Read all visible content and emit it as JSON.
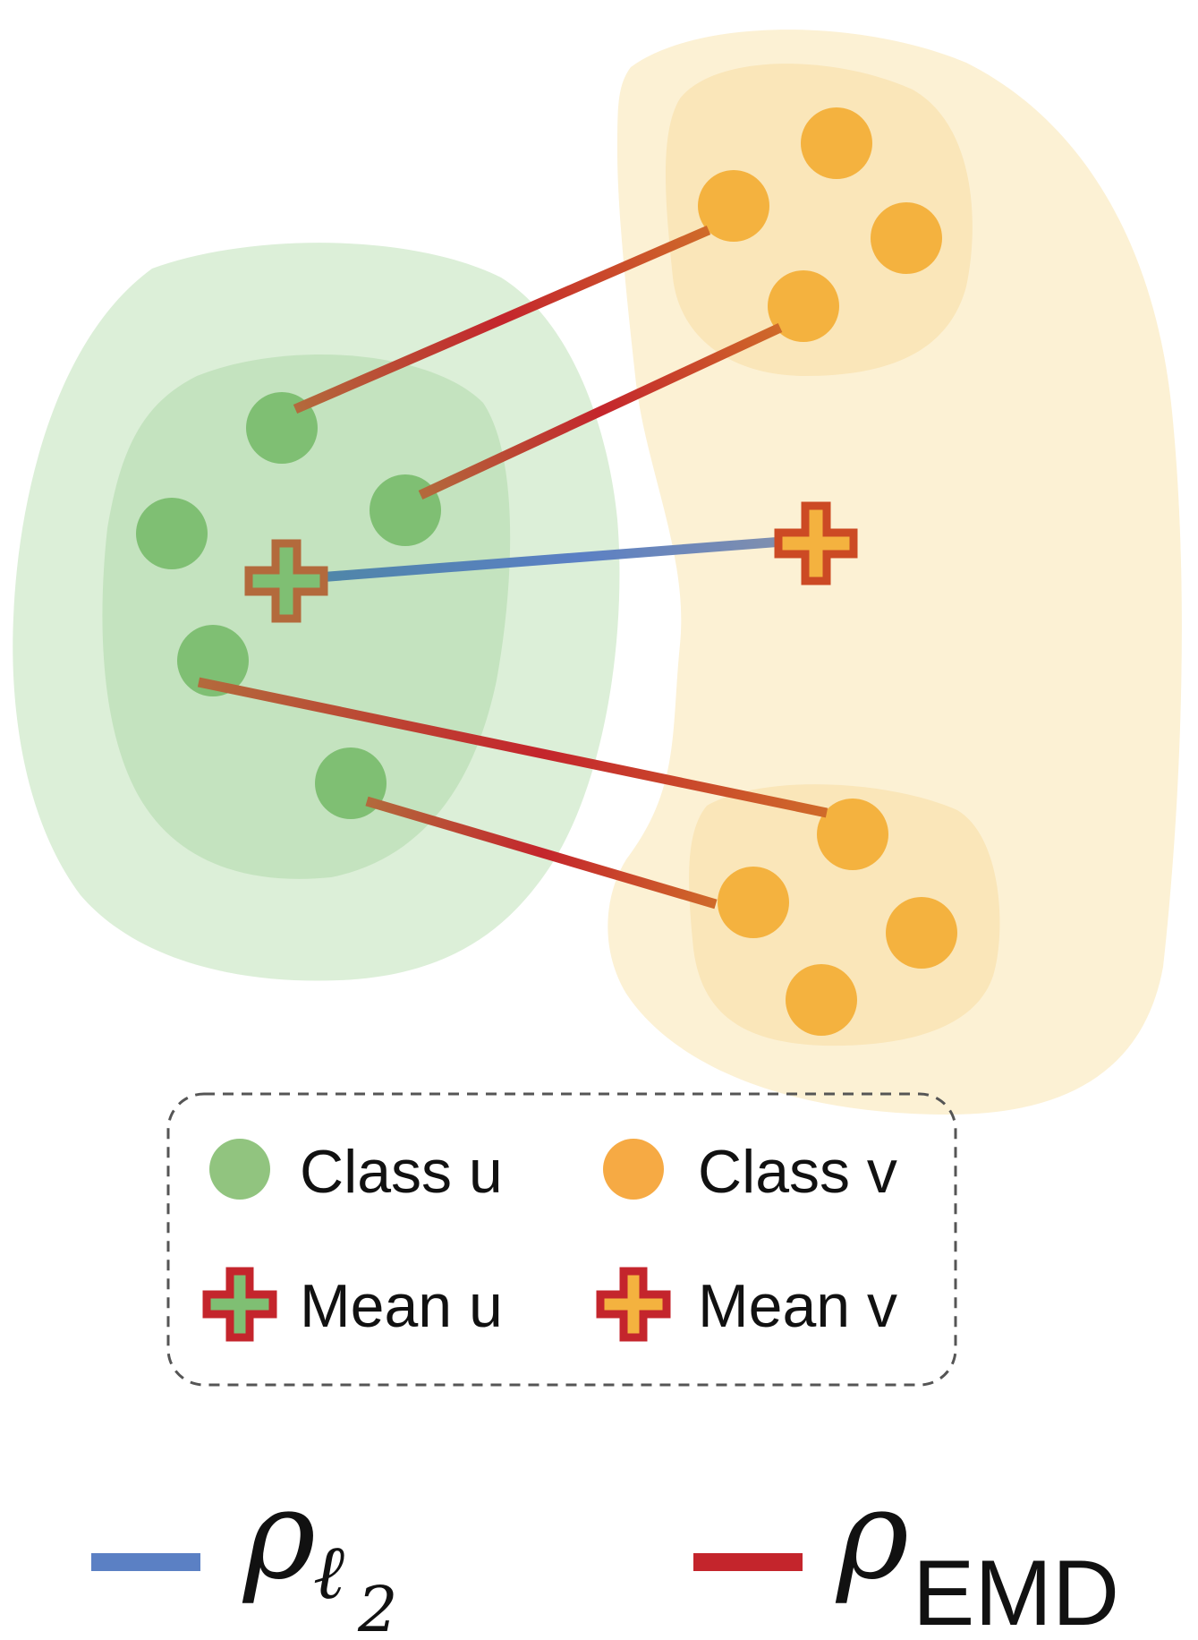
{
  "legend": {
    "class_u": "Class u",
    "class_v": "Class v",
    "mean_u": "Mean u",
    "mean_v": "Mean v"
  },
  "metrics": {
    "l2_symbol": "ρ",
    "l2_subscript_letter": "ℓ",
    "l2_subscript_number": "2",
    "emd_symbol": "ρ",
    "emd_subscript": "EMD"
  },
  "colors": {
    "class_u": "#7fbf73",
    "class_u_region_outer": "#dcefd8",
    "class_u_region_inner": "#c4e3bf",
    "class_v": "#f4b23f",
    "class_v_region_outer": "#fcf1d4",
    "class_v_region_inner": "#fae6b9",
    "l2_line": "#5b80c4",
    "emd_line": "#c4252c",
    "mean_outline": "#c4252c"
  },
  "icons": {
    "class_u_marker": "green-dot-icon",
    "class_v_marker": "orange-dot-icon",
    "mean_u_marker": "green-plus-icon",
    "mean_v_marker": "orange-plus-icon"
  }
}
